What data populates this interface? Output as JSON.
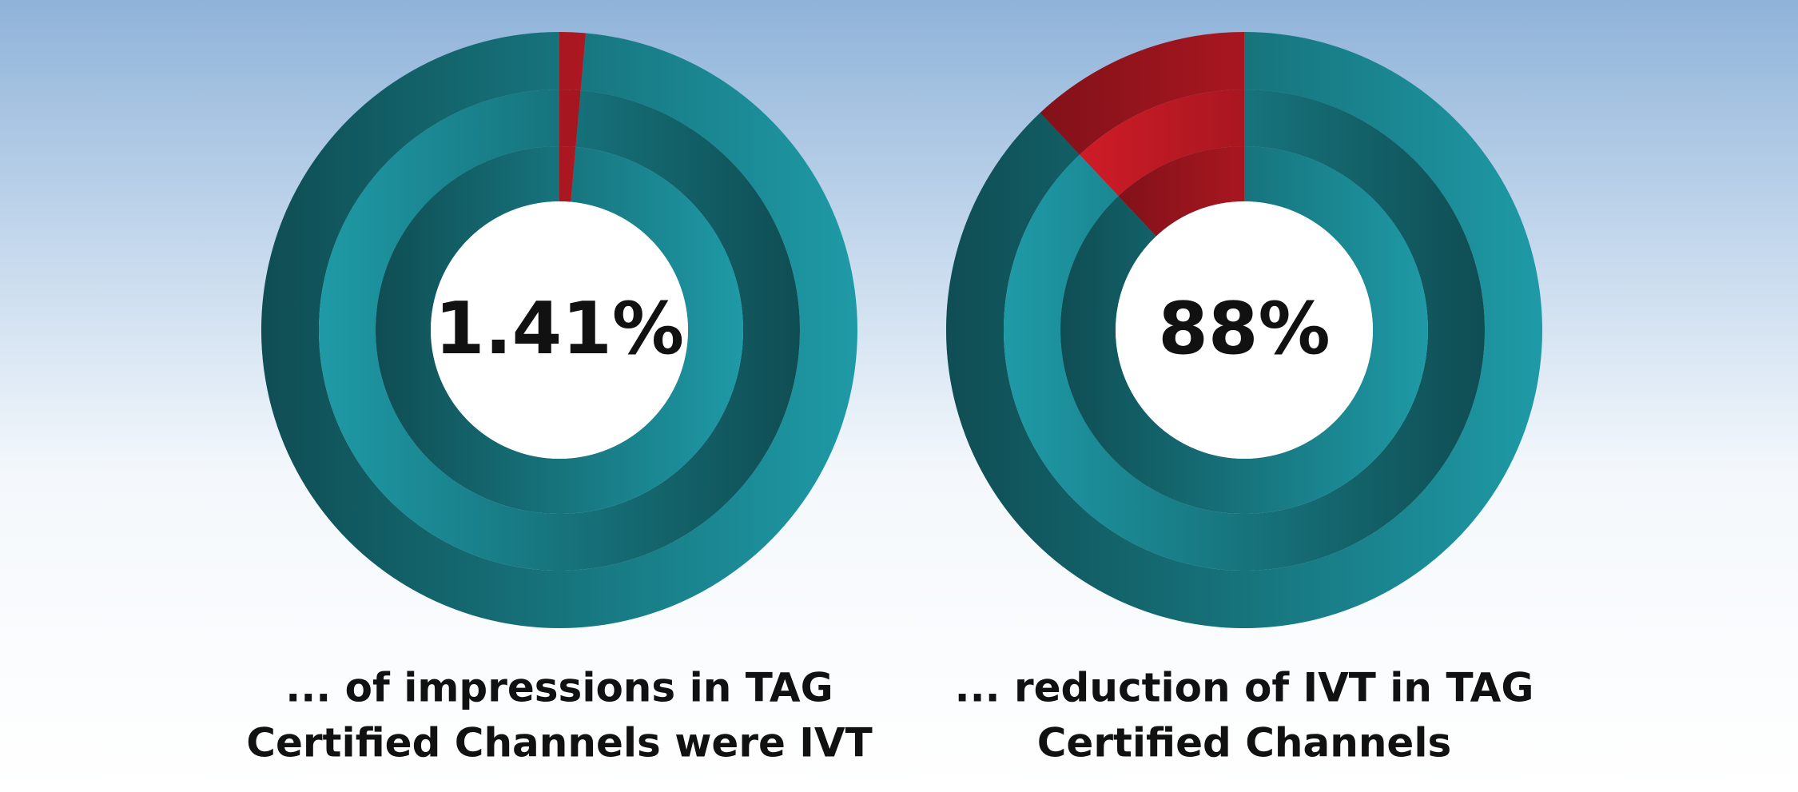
{
  "chart_data": [
    {
      "type": "donut",
      "values": [
        1.41
      ],
      "value_labels": [
        "1.41%"
      ],
      "value_color": "#e01e2b",
      "rest_color": "#1e9aa6",
      "caption": [
        "... of impressions in TAG",
        "Certified Channels were IVT"
      ]
    },
    {
      "type": "donut",
      "values": [
        88
      ],
      "value_labels": [
        "88%"
      ],
      "value_color": "#1e9aa6",
      "rest_color": "#e01e2b",
      "caption": [
        "... reduction of IVT in TAG",
        "Certified Channels"
      ]
    }
  ]
}
